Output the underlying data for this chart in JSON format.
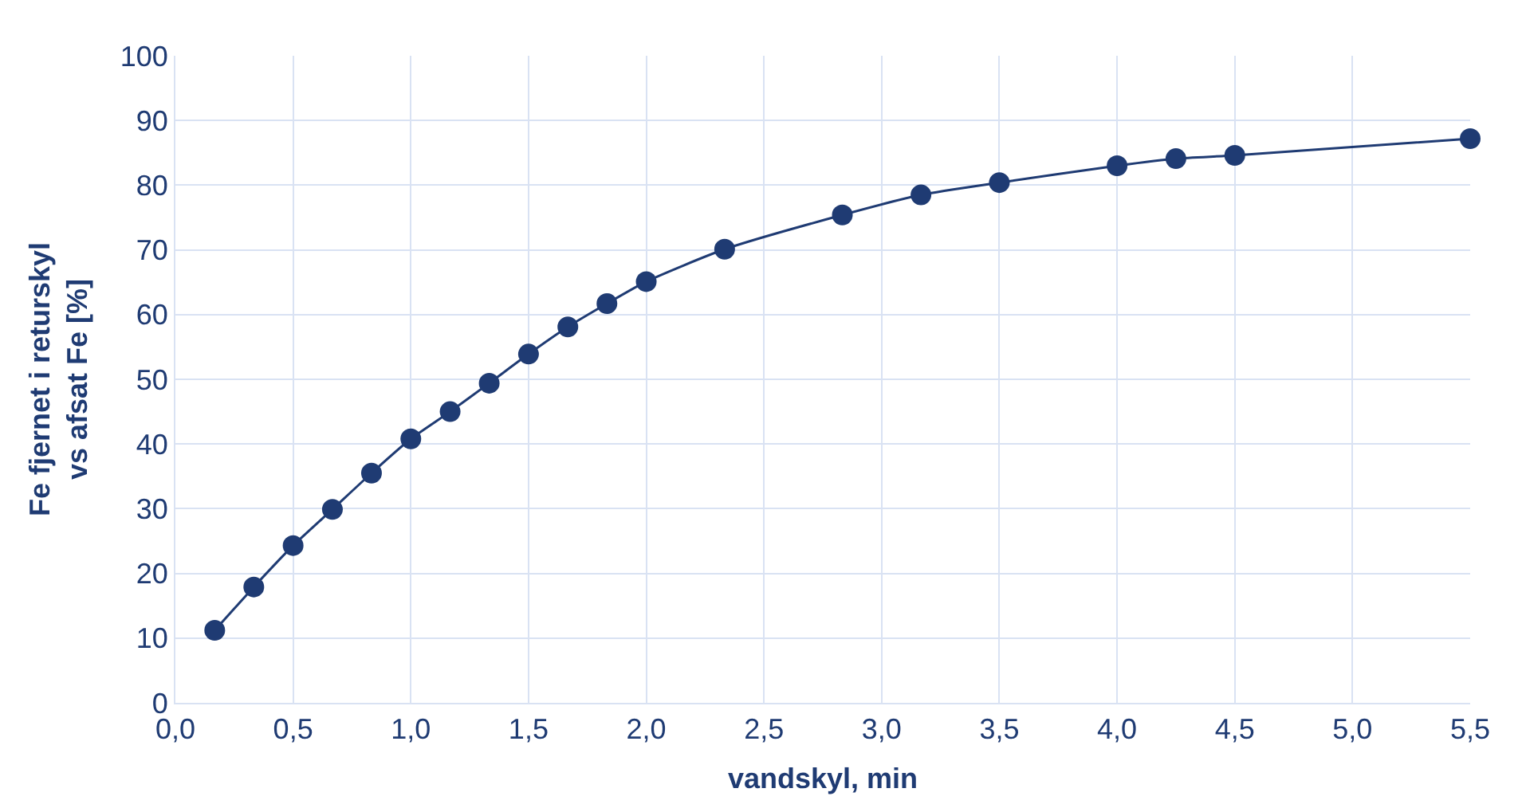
{
  "chart_data": {
    "type": "line",
    "xlabel": "vandskyl, min",
    "ylabel": "Fe fjernet i returskyl\nvs afsat Fe [%]",
    "x": [
      0.167,
      0.333,
      0.5,
      0.667,
      0.833,
      1.0,
      1.167,
      1.333,
      1.5,
      1.667,
      1.833,
      2.0,
      2.333,
      2.833,
      3.167,
      3.5,
      4.0,
      4.25,
      4.5,
      5.5
    ],
    "series": [
      {
        "color": "#1f3b73",
        "values": [
          11.2,
          17.9,
          24.3,
          29.9,
          35.5,
          40.8,
          45.0,
          49.4,
          53.9,
          58.1,
          61.7,
          65.1,
          70.1,
          75.4,
          78.5,
          80.4,
          83.0,
          84.1,
          84.6,
          87.2
        ]
      }
    ],
    "xlim": [
      0,
      5.5
    ],
    "ylim": [
      0,
      100
    ],
    "xticks": [
      {
        "value": 0,
        "label": "0,0"
      },
      {
        "value": 0.5,
        "label": "0,5"
      },
      {
        "value": 1,
        "label": "1,0"
      },
      {
        "value": 1.5,
        "label": "1,5"
      },
      {
        "value": 2,
        "label": "2,0"
      },
      {
        "value": 2.5,
        "label": "2,5"
      },
      {
        "value": 3,
        "label": "3,0"
      },
      {
        "value": 3.5,
        "label": "3,5"
      },
      {
        "value": 4,
        "label": "4,0"
      },
      {
        "value": 4.5,
        "label": "4,5"
      },
      {
        "value": 5,
        "label": "5,0"
      },
      {
        "value": 5.5,
        "label": "5,5"
      }
    ],
    "yticks": [
      0,
      10,
      20,
      30,
      40,
      50,
      60,
      70,
      80,
      90,
      100
    ],
    "grid": true,
    "marker": "circle",
    "line_style": "solid"
  }
}
